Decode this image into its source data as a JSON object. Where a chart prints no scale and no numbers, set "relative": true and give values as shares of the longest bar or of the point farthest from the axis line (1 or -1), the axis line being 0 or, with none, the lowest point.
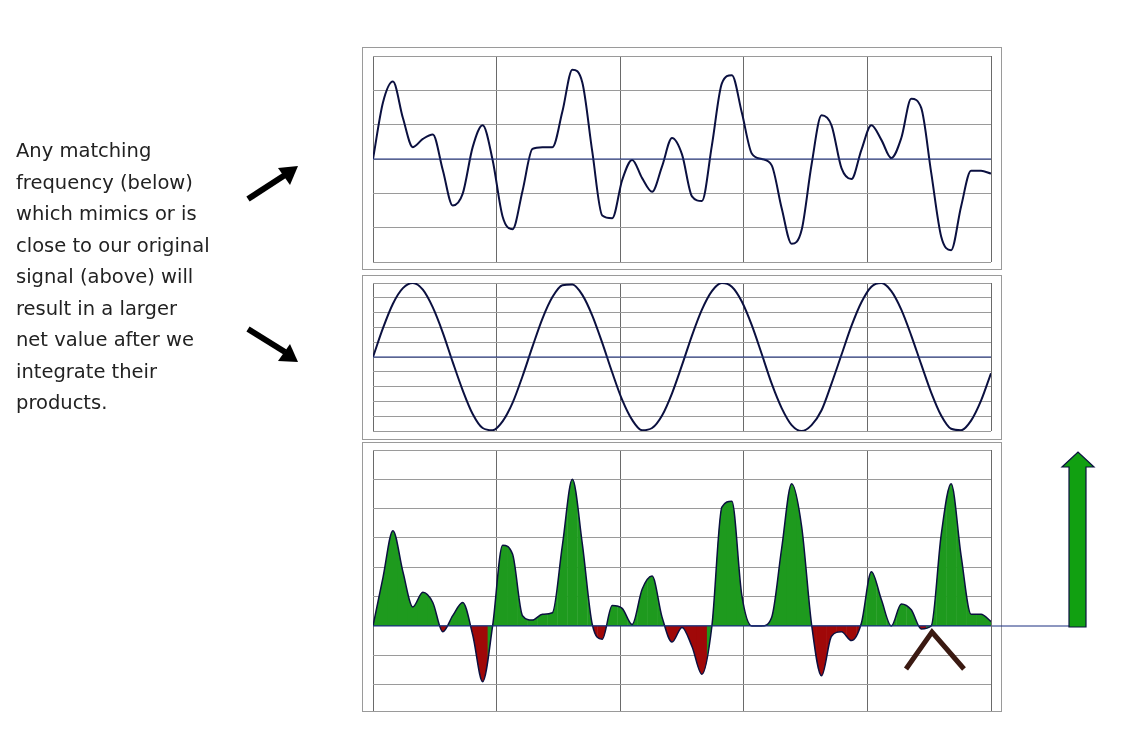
{
  "chart_data": [
    {
      "type": "line",
      "relative": true,
      "grid": true,
      "ref_lines": [
        {
          "axis": "y",
          "value": 0,
          "color": "#1a2f80"
        }
      ],
      "annotations": [
        "Any matching frequency (below) which mimics or is close to our original signal (above) will result in a larger net value after we integrate their products."
      ],
      "categories": [
        null,
        null,
        null,
        null,
        null,
        null,
        null,
        null,
        null,
        null,
        null,
        null,
        null,
        null,
        null,
        null,
        null,
        null,
        null,
        null,
        null,
        null,
        null,
        null,
        null,
        null,
        null,
        null,
        null,
        null,
        null,
        null,
        null,
        null,
        null,
        null,
        null,
        null,
        null,
        null,
        null,
        null,
        null,
        null,
        null,
        null,
        null,
        null,
        null,
        null,
        null,
        null,
        null,
        null,
        null,
        null,
        null,
        null,
        null,
        null,
        null,
        null,
        null
      ],
      "series": [
        {
          "color": "#0b1040",
          "values": [
            0,
            0.62,
            0.85,
            0.45,
            0.13,
            0.22,
            0.27,
            -0.12,
            -0.51,
            -0.38,
            0.13,
            0.37,
            -0.01,
            -0.63,
            -0.77,
            -0.35,
            0.11,
            0.13,
            0.13,
            0.52,
            0.98,
            0.84,
            0.08,
            -0.62,
            -0.65,
            -0.23,
            -0.01,
            -0.21,
            -0.36,
            -0.08,
            0.23,
            0.05,
            -0.41,
            -0.46,
            0.15,
            0.83,
            0.92,
            0.51,
            0.06,
            0,
            -0.07,
            -0.54,
            -0.93,
            -0.78,
            -0.06,
            0.48,
            0.37,
            -0.1,
            -0.22,
            0.1,
            0.37,
            0.21,
            0.01,
            0.23,
            0.66,
            0.56,
            -0.15,
            -0.85,
            -1.0,
            -0.52,
            -0.13,
            -0.13,
            -0.16
          ]
        }
      ]
    },
    {
      "type": "line",
      "relative": true,
      "grid": true,
      "ref_lines": [
        {
          "axis": "y",
          "value": 0,
          "color": "#1a2f80"
        }
      ],
      "categories": [
        null,
        null,
        null,
        null,
        null,
        null,
        null,
        null,
        null,
        null,
        null,
        null,
        null,
        null,
        null,
        null,
        null,
        null,
        null,
        null,
        null,
        null,
        null,
        null,
        null,
        null,
        null,
        null,
        null,
        null,
        null,
        null,
        null,
        null,
        null,
        null,
        null,
        null,
        null,
        null,
        null,
        null,
        null,
        null,
        null,
        null,
        null,
        null,
        null,
        null,
        null,
        null,
        null,
        null,
        null,
        null,
        null,
        null,
        null,
        null,
        null,
        null,
        null
      ],
      "series": [
        {
          "color": "#0b1040",
          "values": [
            0,
            0.39,
            0.72,
            0.93,
            1.0,
            0.91,
            0.67,
            0.33,
            -0.07,
            -0.45,
            -0.77,
            -0.96,
            -0.99,
            -0.87,
            -0.62,
            -0.26,
            0.14,
            0.52,
            0.81,
            0.97,
            0.98,
            0.84,
            0.56,
            0.19,
            -0.21,
            -0.58,
            -0.85,
            -0.99,
            -0.96,
            -0.79,
            -0.49,
            -0.11,
            0.29,
            0.64,
            0.89,
            1.0,
            0.95,
            0.75,
            0.43,
            0.04,
            -0.36,
            -0.69,
            -0.92,
            -1.0,
            -0.92,
            -0.72,
            -0.36,
            0.03,
            0.42,
            0.74,
            0.95,
            1.0,
            0.89,
            0.64,
            0.29,
            -0.1,
            -0.48,
            -0.79,
            -0.97,
            -0.99,
            -0.86,
            -0.59,
            -0.22
          ]
        }
      ]
    },
    {
      "type": "area",
      "relative": true,
      "grid": true,
      "ref_lines": [
        {
          "axis": "y",
          "value": 0,
          "color": "#1a2f80"
        }
      ],
      "categories": [
        null,
        null,
        null,
        null,
        null,
        null,
        null,
        null,
        null,
        null,
        null,
        null,
        null,
        null,
        null,
        null,
        null,
        null,
        null,
        null,
        null,
        null,
        null,
        null,
        null,
        null,
        null,
        null,
        null,
        null,
        null,
        null,
        null,
        null,
        null,
        null,
        null,
        null,
        null,
        null,
        null,
        null,
        null,
        null,
        null,
        null,
        null,
        null,
        null,
        null,
        null,
        null,
        null,
        null,
        null,
        null,
        null,
        null,
        null,
        null,
        null,
        null,
        null
      ],
      "series": [
        {
          "colors": [
            "#1e9a1e",
            "#1e9a1e",
            "#1e9a1e",
            "#1e9a1e",
            "#1e9a1e",
            "#1e9a1e",
            "#1e9a1e",
            "#a00808",
            "#1e9a1e",
            "#1e9a1e",
            "#a00808",
            "#a00808",
            "#1e9a1e",
            "#1e9a1e",
            "#1e9a1e",
            "#1e9a1e",
            "#1e9a1e",
            "#1e9a1e",
            "#1e9a1e",
            "#1e9a1e",
            "#1e9a1e",
            "#1e9a1e",
            "#1e9a1e",
            "#a00808",
            "#1e9a1e",
            "#1e9a1e",
            "#1e9a1e",
            "#1e9a1e",
            "#1e9a1e",
            "#1e9a1e",
            "#a00808",
            "#a00808",
            "#a00808",
            "#a00808",
            "#1e9a1e",
            "#1e9a1e",
            "#1e9a1e",
            "#1e9a1e",
            "#1e9a1e",
            "#1e9a1e",
            "#1e9a1e",
            "#1e9a1e",
            "#1e9a1e",
            "#1e9a1e",
            "#1e9a1e",
            "#a00808",
            "#a00808",
            "#a00808",
            "#a00808",
            "#1e9a1e",
            "#1e9a1e",
            "#1e9a1e",
            "#1e9a1e",
            "#1e9a1e",
            "#1e9a1e",
            "#a00808",
            "#1e9a1e",
            "#1e9a1e",
            "#1e9a1e",
            "#1e9a1e",
            "#1e9a1e",
            "#1e9a1e",
            "#1e9a1e"
          ],
          "values": [
            0,
            0.33,
            0.65,
            0.37,
            0.13,
            0.23,
            0.16,
            -0.04,
            0.07,
            0.16,
            -0.06,
            -0.38,
            0,
            0.55,
            0.49,
            0.07,
            0.04,
            0.08,
            0.09,
            0.55,
            1.0,
            0.56,
            0.01,
            -0.09,
            0.14,
            0.12,
            0.01,
            0.25,
            0.34,
            0.06,
            -0.11,
            -0.01,
            -0.14,
            -0.33,
            0,
            0.81,
            0.85,
            0.21,
            0,
            0,
            0.06,
            0.53,
            0.97,
            0.68,
            0.01,
            -0.34,
            -0.07,
            -0.04,
            -0.1,
            0.02,
            0.37,
            0.18,
            0,
            0.15,
            0.11,
            -0.02,
            0,
            0.62,
            0.97,
            0.48,
            0.08,
            0.08,
            0.03
          ]
        }
      ]
    }
  ]
}
